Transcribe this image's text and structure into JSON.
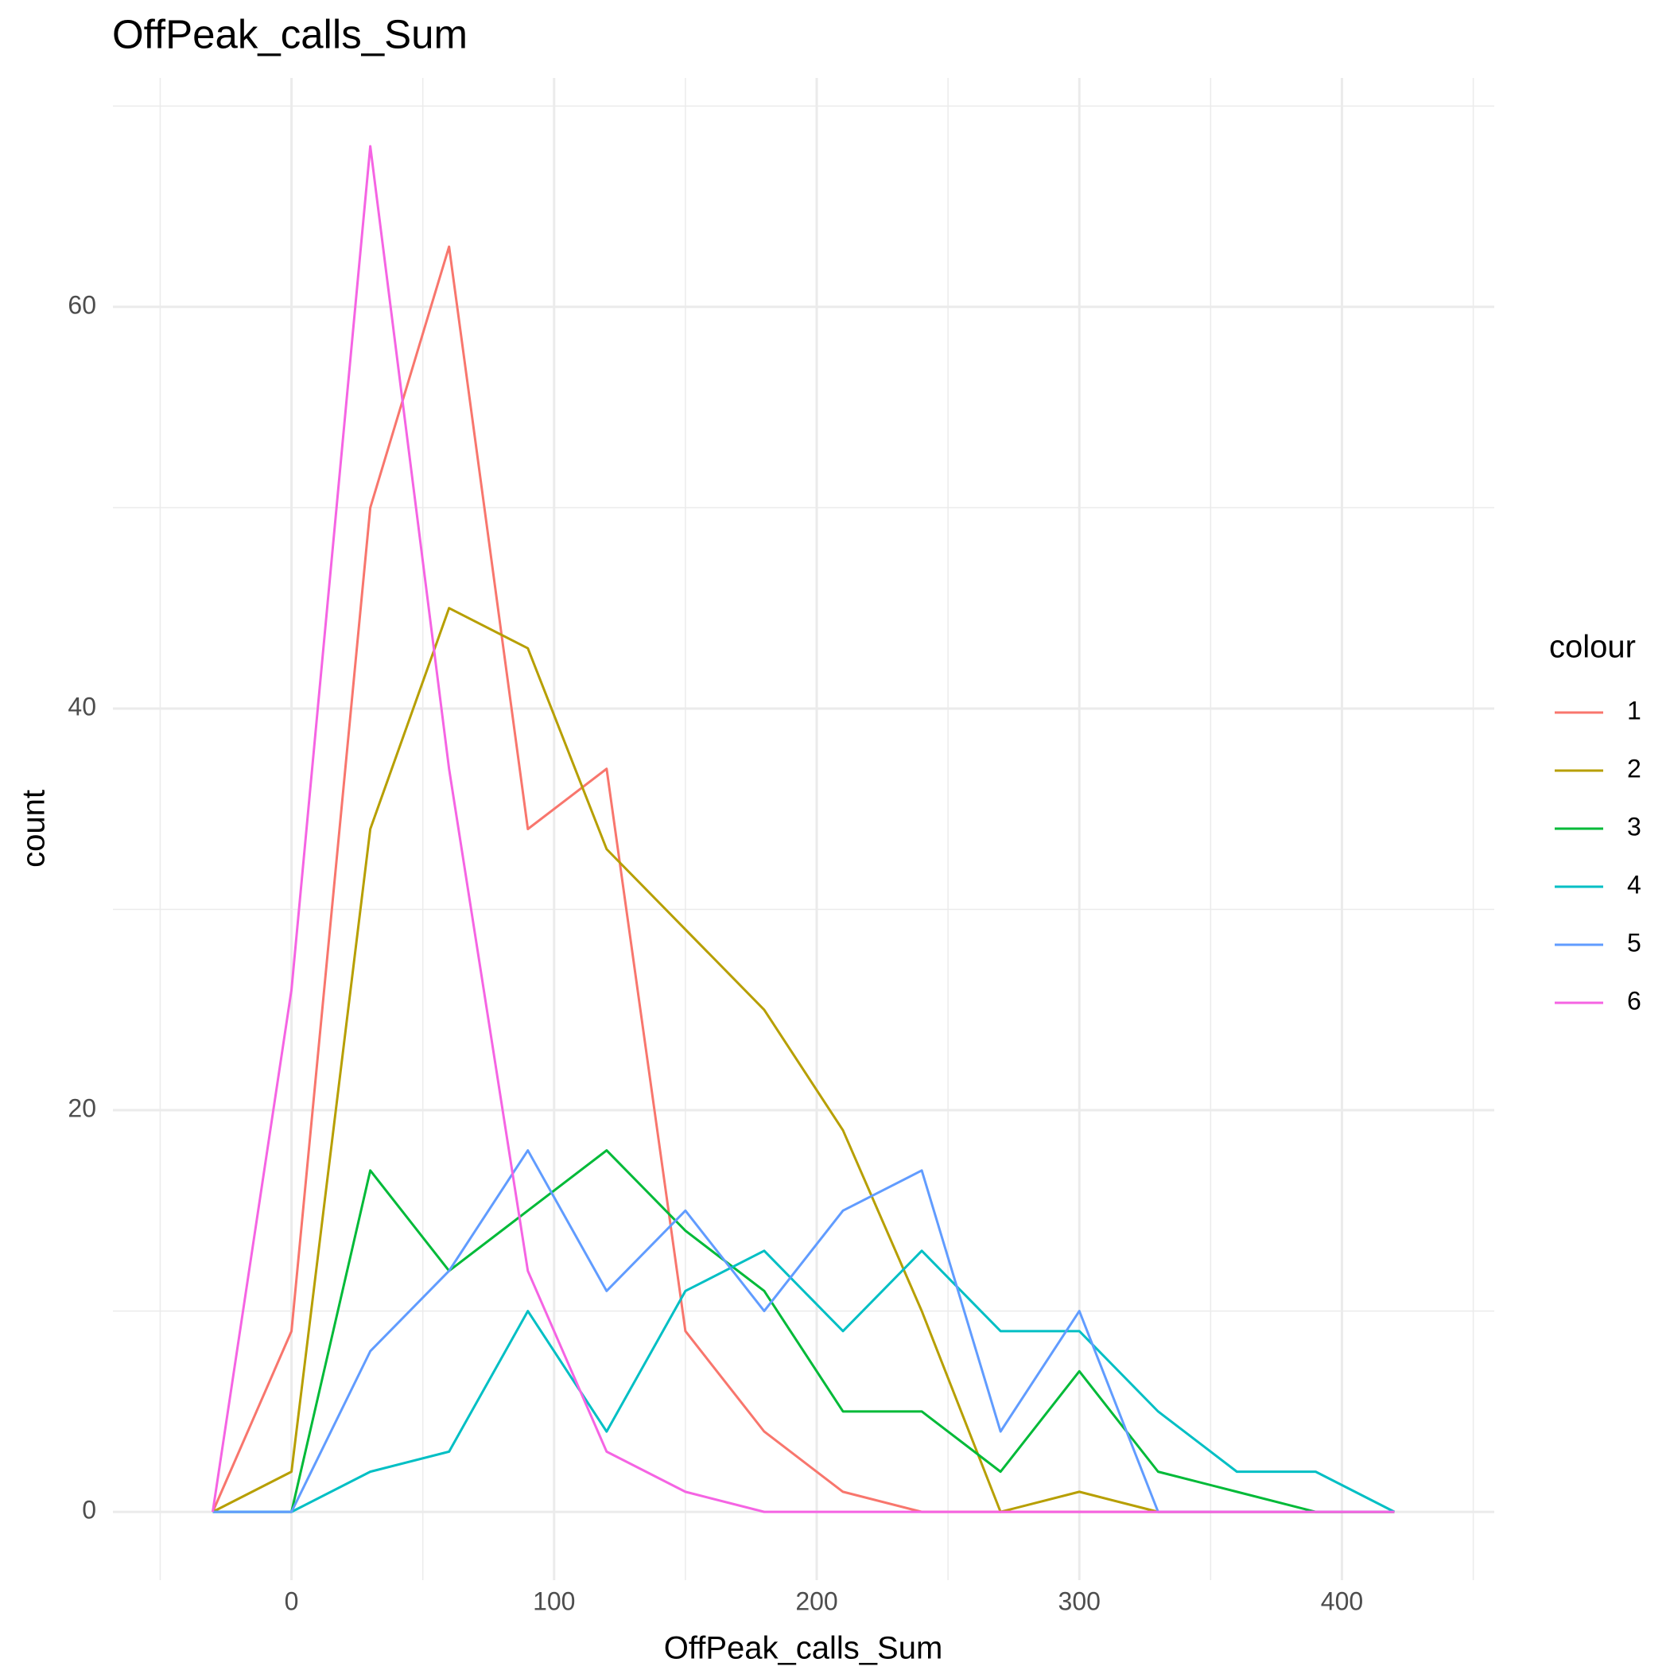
{
  "chart_data": {
    "type": "line",
    "title": "OffPeak_calls_Sum",
    "x_label": "OffPeak_calls_Sum",
    "y_label": "count",
    "legend_title": "colour",
    "legend_position": "right",
    "grid": true,
    "x": [
      -30,
      0,
      30,
      60,
      90,
      120,
      150,
      180,
      210,
      240,
      270,
      300,
      330,
      360,
      390,
      420
    ],
    "series": [
      {
        "name": "1",
        "color": "#F8766D",
        "values": [
          0,
          9,
          50,
          63,
          34,
          37,
          9,
          4,
          1,
          0,
          0,
          0,
          0,
          0,
          0,
          0
        ]
      },
      {
        "name": "2",
        "color": "#B79F00",
        "values": [
          0,
          2,
          34,
          45,
          43,
          33,
          29,
          25,
          19,
          10,
          0,
          1,
          0,
          0,
          0,
          0
        ]
      },
      {
        "name": "3",
        "color": "#00BA38",
        "values": [
          0,
          0,
          17,
          12,
          15,
          18,
          14,
          11,
          5,
          5,
          2,
          7,
          2,
          1,
          0,
          0
        ]
      },
      {
        "name": "4",
        "color": "#00BFC4",
        "values": [
          0,
          0,
          2,
          3,
          10,
          4,
          11,
          13,
          9,
          13,
          9,
          9,
          5,
          2,
          2,
          0
        ]
      },
      {
        "name": "5",
        "color": "#619CFF",
        "values": [
          0,
          0,
          8,
          12,
          18,
          11,
          15,
          10,
          15,
          17,
          4,
          10,
          0,
          0,
          0,
          0
        ]
      },
      {
        "name": "6",
        "color": "#F564E3",
        "values": [
          0,
          26,
          68,
          37,
          12,
          3,
          1,
          0,
          0,
          0,
          0,
          0,
          0,
          0,
          0,
          0
        ]
      }
    ],
    "xlim": [
      -68,
      458
    ],
    "ylim": [
      -3.4,
      71.4
    ],
    "xticks": [
      0,
      100,
      200,
      300,
      400
    ],
    "yticks": [
      0,
      20,
      40,
      60
    ],
    "xminor": [
      -50,
      50,
      150,
      250,
      350,
      450
    ],
    "yminor": [
      10,
      30,
      50,
      70
    ]
  }
}
